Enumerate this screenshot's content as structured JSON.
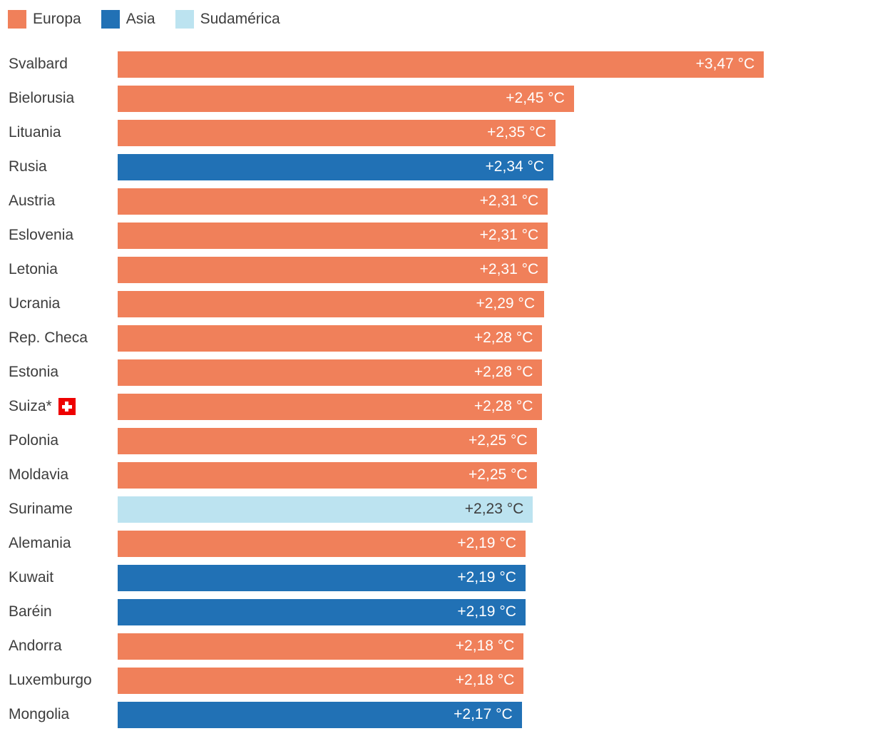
{
  "colors": {
    "background": "#ffffff",
    "label_text": "#3d3d3d",
    "europe_orange": "#F0805A",
    "asia_blue": "#2171B5",
    "southamerica_lightblue": "#BCE3F0",
    "swiss_flag_red": "#EE0000"
  },
  "chart_data": {
    "type": "bar",
    "orientation": "horizontal",
    "unit": "°C",
    "xlim": [
      0,
      4.04
    ],
    "grid": false,
    "legend_position": "top-left",
    "legend": [
      {
        "label": "Europa",
        "color": "#F0805A",
        "text_color": "#ffffff"
      },
      {
        "label": "Asia",
        "color": "#2171B5",
        "text_color": "#ffffff"
      },
      {
        "label": "Sudamérica",
        "color": "#BCE3F0",
        "text_color": "#3d3d3d"
      }
    ],
    "bars": [
      {
        "country": "Svalbard",
        "region": "Europa",
        "value": 3.47,
        "value_label": "+3,47 °C"
      },
      {
        "country": "Bielorusia",
        "region": "Europa",
        "value": 2.45,
        "value_label": "+2,45 °C"
      },
      {
        "country": "Lituania",
        "region": "Europa",
        "value": 2.35,
        "value_label": "+2,35 °C"
      },
      {
        "country": "Rusia",
        "region": "Asia",
        "value": 2.34,
        "value_label": "+2,34 °C"
      },
      {
        "country": "Austria",
        "region": "Europa",
        "value": 2.31,
        "value_label": "+2,31 °C"
      },
      {
        "country": "Eslovenia",
        "region": "Europa",
        "value": 2.31,
        "value_label": "+2,31 °C"
      },
      {
        "country": "Letonia",
        "region": "Europa",
        "value": 2.31,
        "value_label": "+2,31 °C"
      },
      {
        "country": "Ucrania",
        "region": "Europa",
        "value": 2.29,
        "value_label": "+2,29 °C"
      },
      {
        "country": "Rep. Checa",
        "region": "Europa",
        "value": 2.28,
        "value_label": "+2,28 °C"
      },
      {
        "country": "Estonia",
        "region": "Europa",
        "value": 2.28,
        "value_label": "+2,28 °C"
      },
      {
        "country": "Suiza*",
        "region": "Europa",
        "value": 2.28,
        "value_label": "+2,28 °C",
        "flag": "swiss-flag"
      },
      {
        "country": "Polonia",
        "region": "Europa",
        "value": 2.25,
        "value_label": "+2,25 °C"
      },
      {
        "country": "Moldavia",
        "region": "Europa",
        "value": 2.25,
        "value_label": "+2,25 °C"
      },
      {
        "country": "Suriname",
        "region": "Sudamérica",
        "value": 2.23,
        "value_label": "+2,23 °C"
      },
      {
        "country": "Alemania",
        "region": "Europa",
        "value": 2.19,
        "value_label": "+2,19 °C"
      },
      {
        "country": "Kuwait",
        "region": "Asia",
        "value": 2.19,
        "value_label": "+2,19 °C"
      },
      {
        "country": "Baréin",
        "region": "Asia",
        "value": 2.19,
        "value_label": "+2,19 °C"
      },
      {
        "country": "Andorra",
        "region": "Europa",
        "value": 2.18,
        "value_label": "+2,18 °C"
      },
      {
        "country": "Luxemburgo",
        "region": "Europa",
        "value": 2.18,
        "value_label": "+2,18 °C"
      },
      {
        "country": "Mongolia",
        "region": "Asia",
        "value": 2.17,
        "value_label": "+2,17 °C"
      }
    ]
  }
}
